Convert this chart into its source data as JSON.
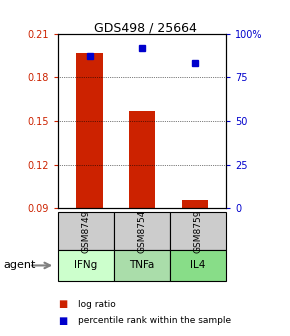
{
  "title": "GDS498 / 25664",
  "samples": [
    "GSM8749",
    "GSM8754",
    "GSM8759"
  ],
  "agents": [
    "IFNg",
    "TNFa",
    "IL4"
  ],
  "log_ratio": [
    0.197,
    0.157,
    0.096
  ],
  "percentile_rank": [
    87,
    92,
    83
  ],
  "ylim_left": [
    0.09,
    0.21
  ],
  "ylim_right": [
    0,
    100
  ],
  "yticks_left": [
    0.09,
    0.12,
    0.15,
    0.18,
    0.21
  ],
  "yticks_right": [
    0,
    25,
    50,
    75,
    100
  ],
  "bar_color": "#cc2200",
  "dot_color": "#0000cc",
  "bar_base": 0.09,
  "sample_box_color": "#cccccc",
  "agent_colors": [
    "#ccffcc",
    "#aaddaa",
    "#88dd88"
  ],
  "legend_items": [
    "log ratio",
    "percentile rank within the sample"
  ]
}
